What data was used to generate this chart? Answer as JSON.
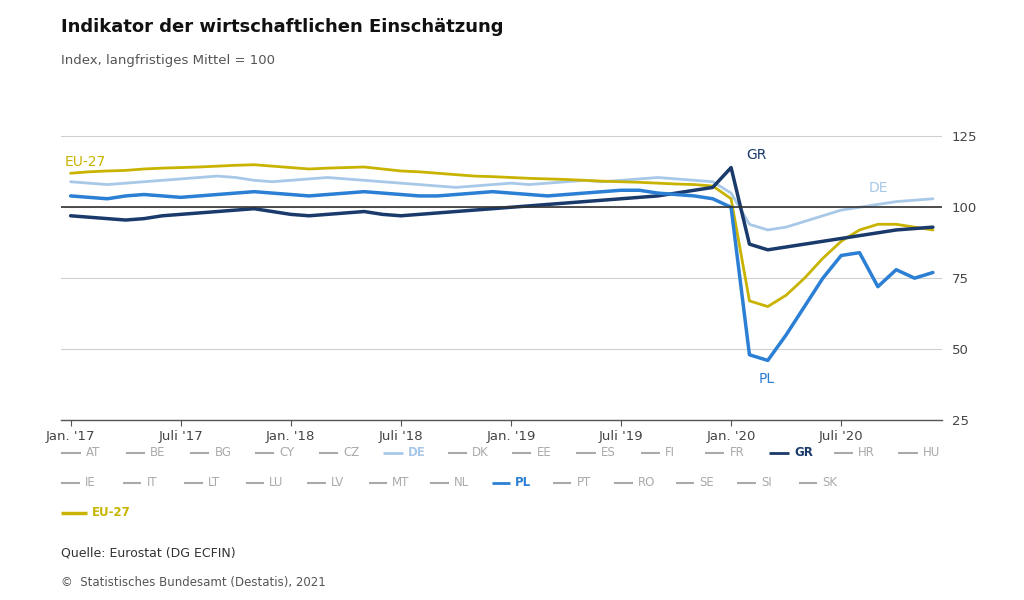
{
  "title": "Indikator der wirtschaftlichen Einschätzung",
  "subtitle": "Index, langfristiges Mittel = 100",
  "source": "Quelle: Eurostat (DG ECFIN)",
  "copyright": "©  Statistisches Bundesamt (Destatis), 2021",
  "ylim": [
    25,
    135
  ],
  "yticks": [
    25,
    50,
    75,
    100,
    125
  ],
  "background_color": "#ffffff",
  "grid_color": "#d0d0d0",
  "reference_line": 100,
  "x_labels": [
    "Jan. '17",
    "Juli '17",
    "Jan. '18",
    "Juli '18",
    "Jan. '19",
    "Juli '19",
    "Jan. '20",
    "Juli '20"
  ],
  "xtick_positions": [
    0,
    6,
    12,
    18,
    24,
    30,
    36,
    42
  ],
  "colors": {
    "GR": "#1a3a6b",
    "DE": "#a8c8e8",
    "PL": "#2b7fd4",
    "EU27": "#c8b400",
    "others": "#c0c0c0"
  },
  "EU27": [
    112,
    112.5,
    112.8,
    113,
    113.5,
    113.8,
    114,
    114.2,
    114.5,
    114.8,
    115,
    114.5,
    114,
    113.5,
    113.8,
    114,
    114.2,
    113.5,
    112.8,
    112.5,
    112,
    111.5,
    111,
    110.8,
    110.5,
    110.2,
    110,
    109.8,
    109.5,
    109.2,
    109,
    108.8,
    108.5,
    108.2,
    108,
    107.5,
    103,
    67,
    65,
    69,
    75,
    82,
    88,
    92,
    94,
    94,
    93,
    92
  ],
  "DE": [
    109,
    108.5,
    108,
    108.5,
    109,
    109.5,
    110,
    110.5,
    111,
    110.5,
    109.5,
    109,
    109.5,
    110,
    110.5,
    110,
    109.5,
    109,
    108.5,
    108,
    107.5,
    107,
    107.5,
    108,
    108.5,
    108,
    108.5,
    109,
    109.5,
    109,
    109.5,
    110,
    110.5,
    110,
    109.5,
    109,
    105,
    94,
    92,
    93,
    95,
    97,
    99,
    100,
    101,
    102,
    102.5,
    103
  ],
  "GR": [
    97,
    96.5,
    96,
    95.5,
    96,
    97,
    97.5,
    98,
    98.5,
    99,
    99.5,
    98.5,
    97.5,
    97,
    97.5,
    98,
    98.5,
    97.5,
    97,
    97.5,
    98,
    98.5,
    99,
    99.5,
    100,
    100.5,
    101,
    101.5,
    102,
    102.5,
    103,
    103.5,
    104,
    105,
    106,
    107,
    114,
    87,
    85,
    86,
    87,
    88,
    89,
    90,
    91,
    92,
    92.5,
    93
  ],
  "PL": [
    104,
    103.5,
    103,
    104,
    104.5,
    104,
    103.5,
    104,
    104.5,
    105,
    105.5,
    105,
    104.5,
    104,
    104.5,
    105,
    105.5,
    105,
    104.5,
    104,
    104,
    104.5,
    105,
    105.5,
    105,
    104.5,
    104,
    104.5,
    105,
    105.5,
    106,
    106,
    105,
    104.5,
    104,
    103,
    100,
    48,
    46,
    55,
    65,
    75,
    83,
    84,
    72,
    78,
    75,
    77
  ],
  "legend_items_row1": [
    "AT",
    "BE",
    "BG",
    "CY",
    "CZ",
    "DE",
    "DK",
    "EE",
    "ES",
    "FI",
    "FR",
    "GR",
    "HR",
    "HU"
  ],
  "legend_items_row2": [
    "IE",
    "IT",
    "LT",
    "LU",
    "LV",
    "MT",
    "NL",
    "PL",
    "PT",
    "RO",
    "SE",
    "SI",
    "SK"
  ],
  "legend_items_row3": [
    "EU-27"
  ],
  "bold_items": [
    "DE",
    "GR",
    "PL",
    "EU-27"
  ]
}
